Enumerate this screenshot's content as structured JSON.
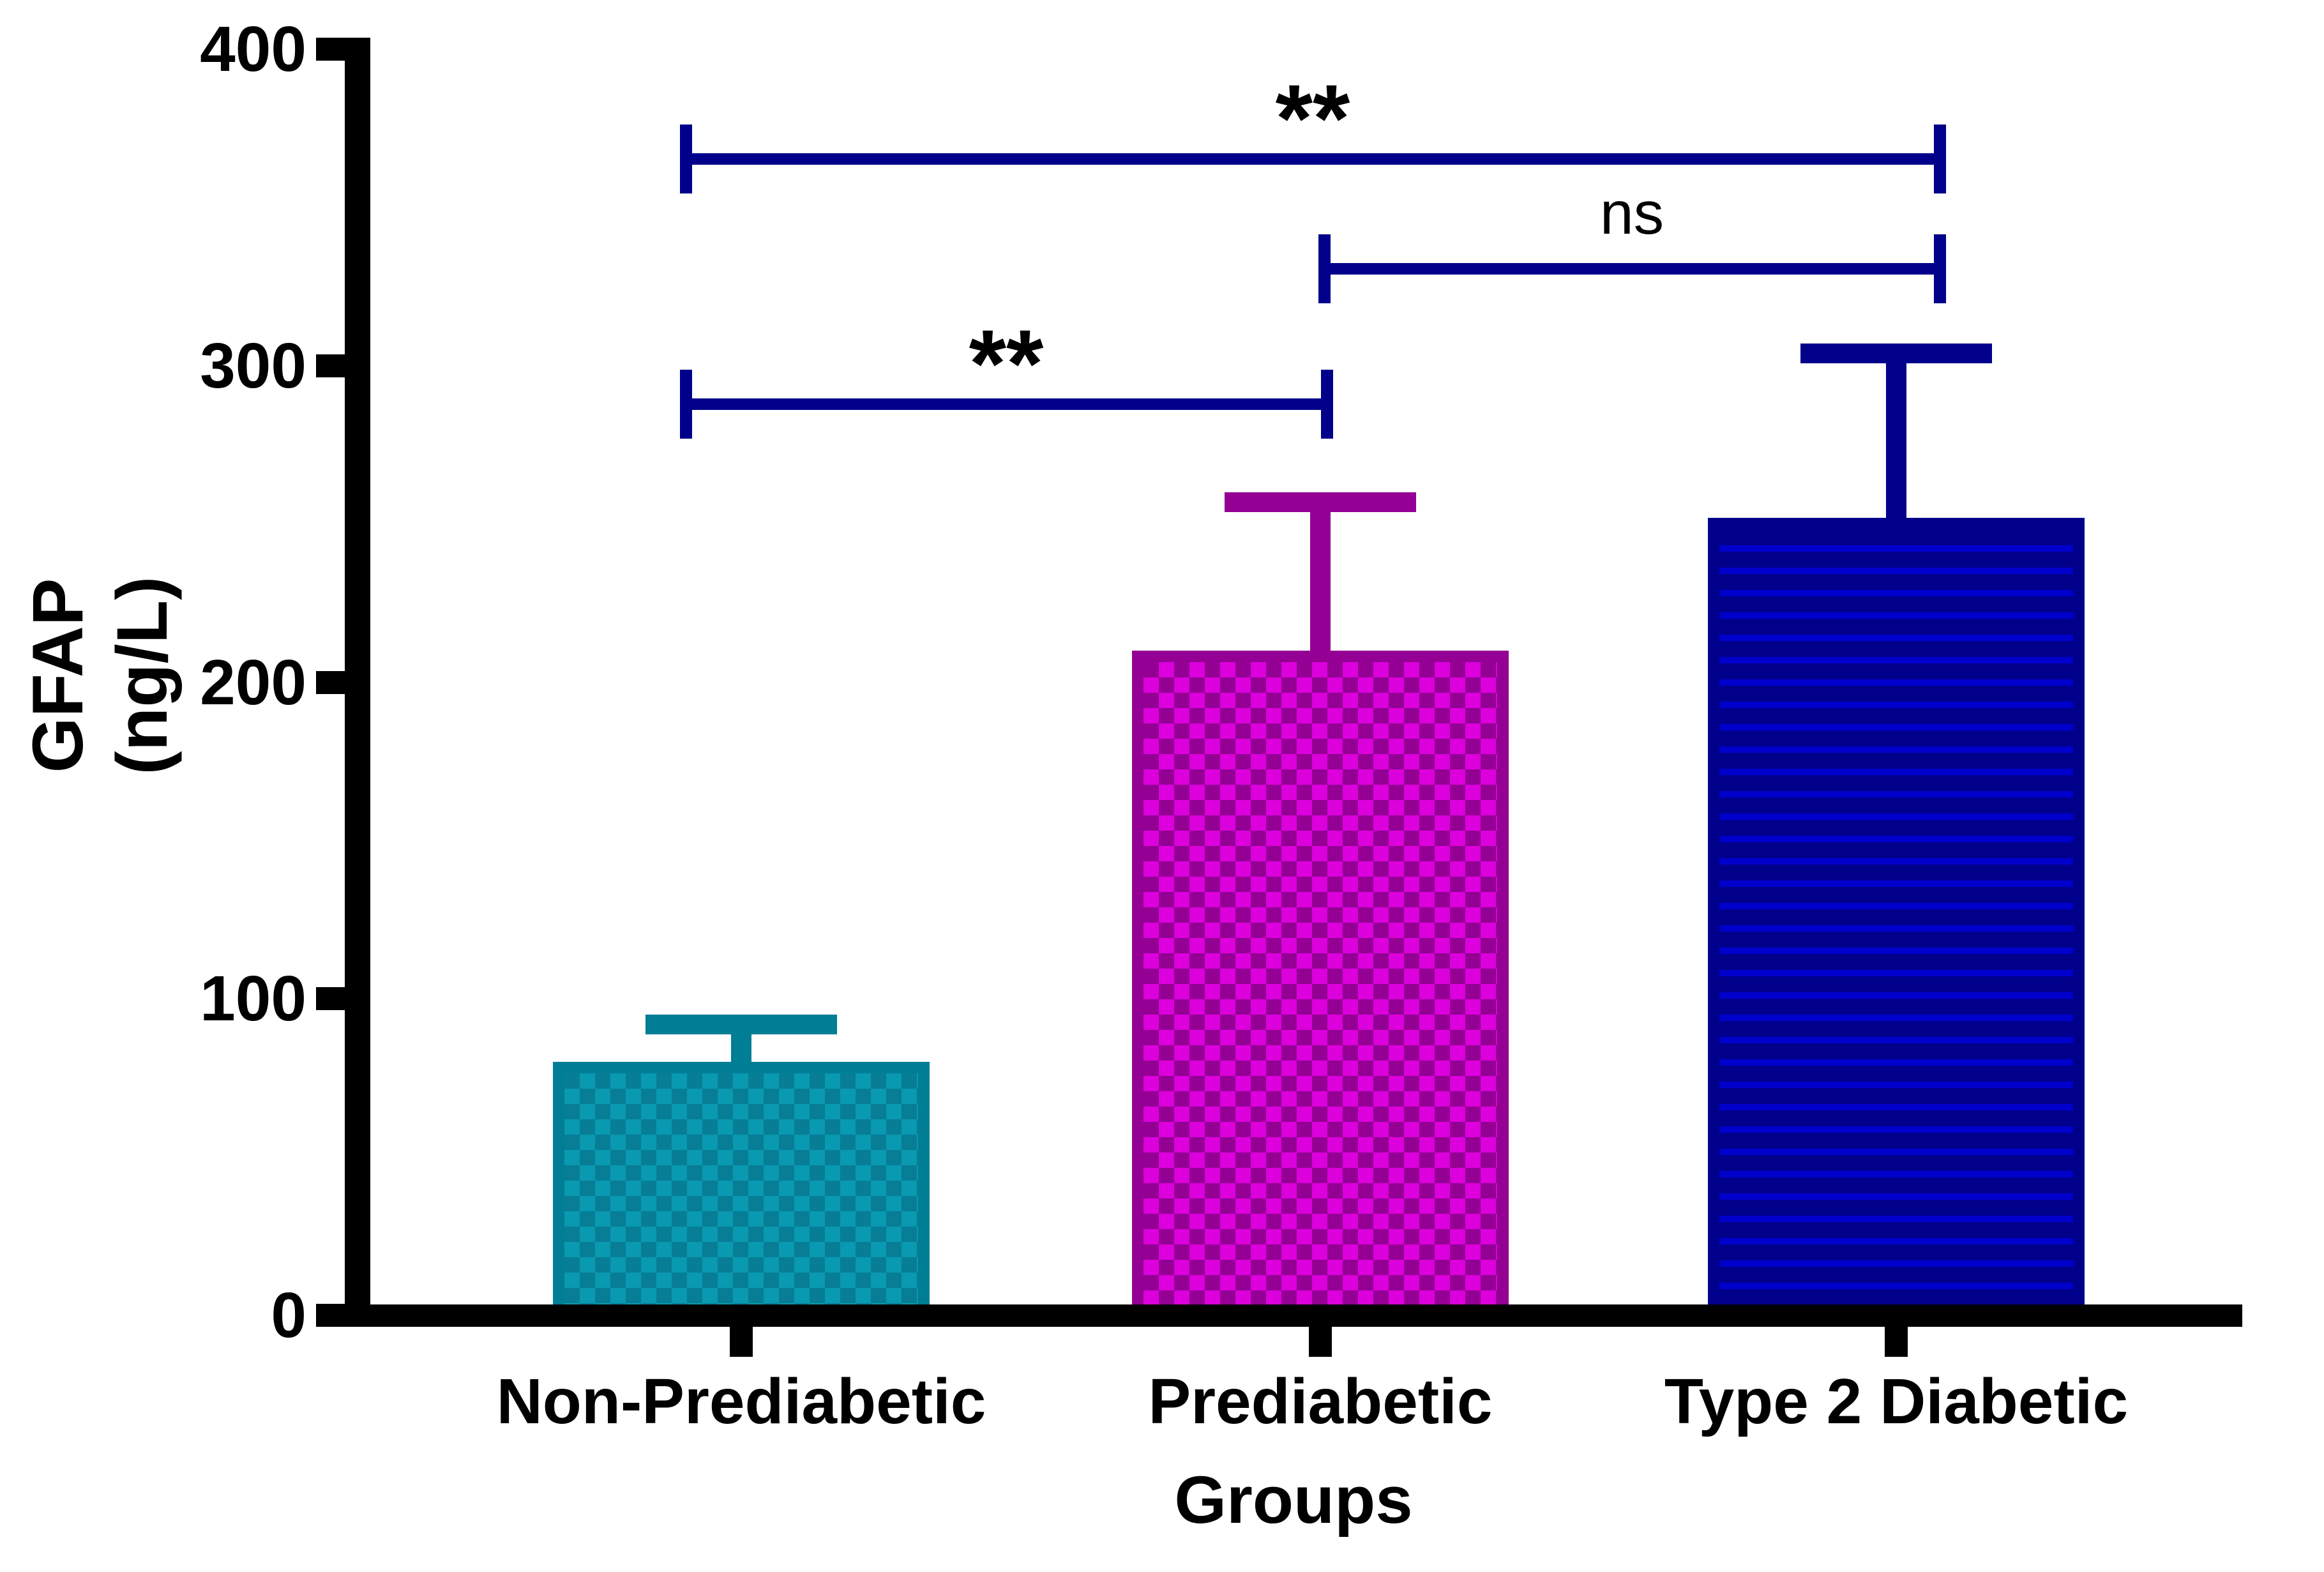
{
  "chart_data": {
    "type": "bar",
    "title": "",
    "xlabel": "Groups",
    "ylabel": "GFAP (ng/L)",
    "categories": [
      "Non-Prediabetic",
      "Prediabetic",
      "Type 2 Diabetic"
    ],
    "values": [
      80,
      210,
      252
    ],
    "errors_plus": [
      15,
      50,
      55
    ],
    "error_style": "sd-upper-cap",
    "ylim": [
      0,
      400
    ],
    "yticks": [
      0,
      100,
      200,
      300,
      400
    ],
    "grid": false,
    "legend": false,
    "bar_styles": [
      {
        "name": "Non-Prediabetic",
        "pattern": "checker",
        "edge": "#007E96",
        "fill_light": "#0999B1",
        "fill_dark": "#077E96"
      },
      {
        "name": "Prediabetic",
        "pattern": "checker",
        "edge": "#930093",
        "fill_light": "#DC00DC",
        "fill_dark": "#930093"
      },
      {
        "name": "Type 2 Diabetic",
        "pattern": "hstripes",
        "edge": "#00008B",
        "fill_light": "#0000CC",
        "fill_dark": "#00008B"
      }
    ],
    "significance": [
      {
        "between": [
          "Non-Prediabetic",
          "Type 2 Diabetic"
        ],
        "label": "**"
      },
      {
        "between": [
          "Prediabetic",
          "Type 2 Diabetic"
        ],
        "label": "ns"
      },
      {
        "between": [
          "Non-Prediabetic",
          "Prediabetic"
        ],
        "label": "**"
      }
    ],
    "bracket_color": "#00008B",
    "axis_color": "#000000"
  },
  "y_axis": {
    "title_line1": "GFAP",
    "title_line2": "(ng/L)",
    "tick_labels": [
      "0",
      "100",
      "200",
      "300",
      "400"
    ]
  },
  "x_axis": {
    "label": "Groups",
    "categories": [
      "Non-Prediabetic",
      "Prediabetic",
      "Type 2 Diabetic"
    ]
  }
}
